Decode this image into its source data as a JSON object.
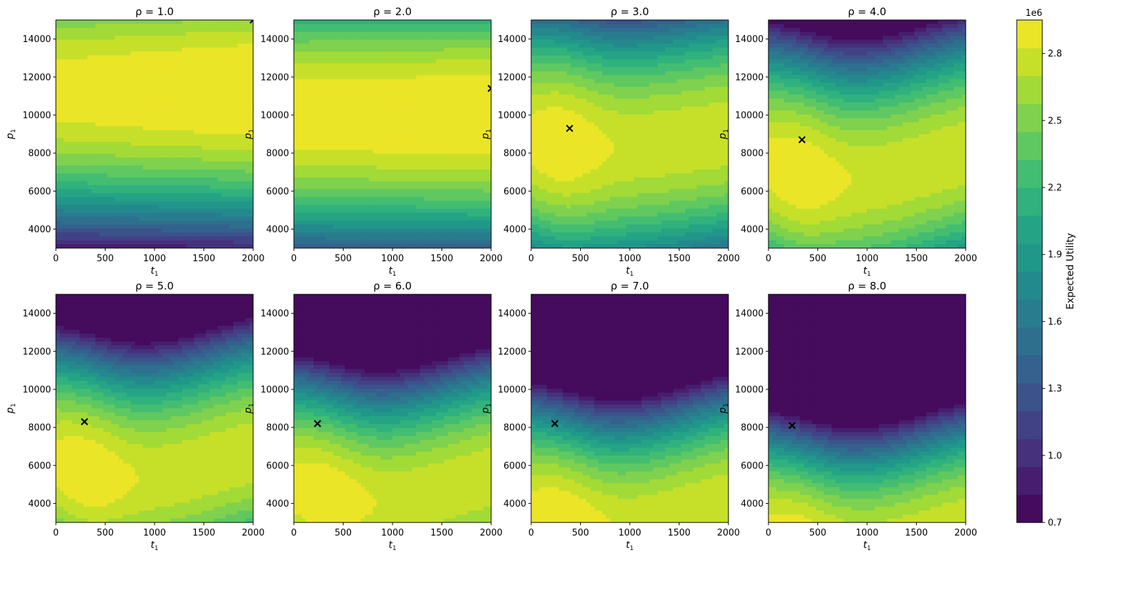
{
  "chart_data": {
    "type": "contourf",
    "figure_title": "",
    "xlabel": "t",
    "xlabel_sub": "1",
    "ylabel": "p",
    "ylabel_sub": "1",
    "xlim": [
      0,
      2000
    ],
    "ylim": [
      3000,
      15000
    ],
    "xticks": [
      "0",
      "500",
      "1000",
      "1500",
      "2000"
    ],
    "yticks": [
      "4000",
      "6000",
      "8000",
      "10000",
      "12000",
      "14000"
    ],
    "panels": [
      {
        "title": "ρ = 1.0",
        "rho": 1.0,
        "optimum": {
          "t1": 2000,
          "p1": 15000
        }
      },
      {
        "title": "ρ = 2.0",
        "rho": 2.0,
        "optimum": {
          "t1": 2000,
          "p1": 11400
        }
      },
      {
        "title": "ρ = 3.0",
        "rho": 3.0,
        "optimum": {
          "t1": 390,
          "p1": 9300
        }
      },
      {
        "title": "ρ = 4.0",
        "rho": 4.0,
        "optimum": {
          "t1": 340,
          "p1": 8700
        }
      },
      {
        "title": "ρ = 5.0",
        "rho": 5.0,
        "optimum": {
          "t1": 290,
          "p1": 8300
        }
      },
      {
        "title": "ρ = 6.0",
        "rho": 6.0,
        "optimum": {
          "t1": 240,
          "p1": 8200
        }
      },
      {
        "title": "ρ = 7.0",
        "rho": 7.0,
        "optimum": {
          "t1": 240,
          "p1": 8200
        }
      },
      {
        "title": "ρ = 8.0",
        "rho": 8.0,
        "optimum": {
          "t1": 240,
          "p1": 8100
        }
      }
    ],
    "colorbar": {
      "label": "Expected Utility",
      "scale_label": "1e6",
      "range": [
        0.7,
        2.95
      ],
      "ticks": [
        "0.7",
        "1.0",
        "1.3",
        "1.6",
        "1.9",
        "2.2",
        "2.5",
        "2.8"
      ],
      "levels": 18,
      "colormap": "viridis"
    }
  }
}
